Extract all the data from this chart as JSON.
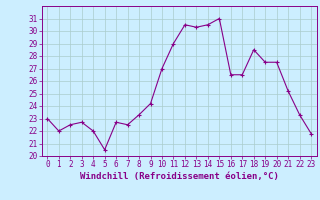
{
  "x": [
    0,
    1,
    2,
    3,
    4,
    5,
    6,
    7,
    8,
    9,
    10,
    11,
    12,
    13,
    14,
    15,
    16,
    17,
    18,
    19,
    20,
    21,
    22,
    23
  ],
  "y": [
    23,
    22,
    22.5,
    22.7,
    22,
    20.5,
    22.7,
    22.5,
    23.3,
    24.2,
    27,
    29,
    30.5,
    30.3,
    30.5,
    31,
    26.5,
    26.5,
    28.5,
    27.5,
    27.5,
    25.2,
    23.3,
    21.8
  ],
  "line_color": "#880088",
  "marker_color": "#880088",
  "bg_color": "#cceeff",
  "grid_color": "#aacccc",
  "axis_color": "#880088",
  "tick_color": "#880088",
  "xlabel": "Windchill (Refroidissement éolien,°C)",
  "ylim": [
    20,
    32
  ],
  "xlim": [
    -0.5,
    23.5
  ],
  "yticks": [
    20,
    21,
    22,
    23,
    24,
    25,
    26,
    27,
    28,
    29,
    30,
    31
  ],
  "xticks": [
    0,
    1,
    2,
    3,
    4,
    5,
    6,
    7,
    8,
    9,
    10,
    11,
    12,
    13,
    14,
    15,
    16,
    17,
    18,
    19,
    20,
    21,
    22,
    23
  ],
  "label_fontsize": 6.5,
  "tick_fontsize": 5.5
}
